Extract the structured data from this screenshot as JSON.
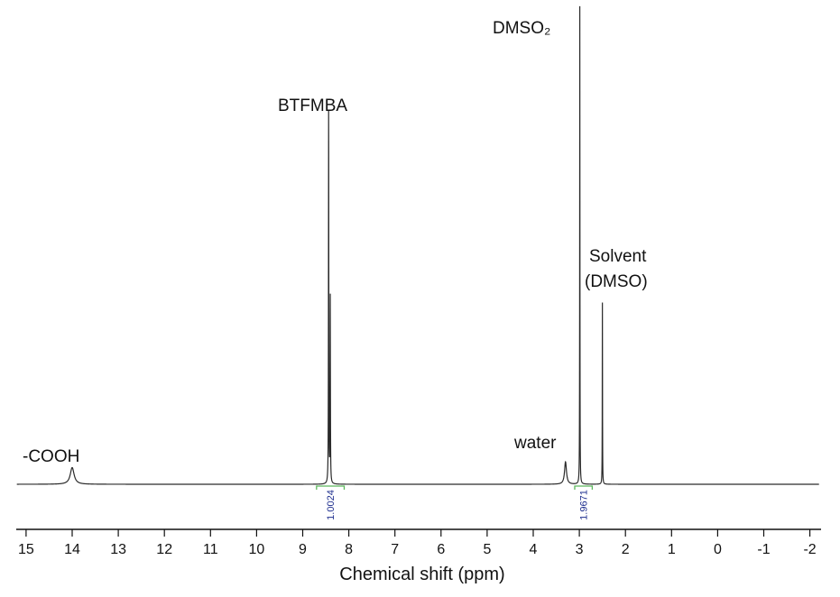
{
  "chart_data": {
    "type": "line",
    "title": "",
    "xlabel": "Chemical shift (ppm)",
    "ylabel": "",
    "xlim": [
      15.2,
      -2.2
    ],
    "x_reversed": true,
    "grid": false,
    "legend": "none",
    "x_ticks": [
      "15",
      "14",
      "13",
      "12",
      "11",
      "10",
      "9",
      "8",
      "7",
      "6",
      "5",
      "4",
      "3",
      "2",
      "1",
      "0",
      "-1",
      "-2"
    ],
    "peaks": [
      {
        "label": "-COOH",
        "shift": 14.0,
        "intensity": 0.035,
        "width": 0.1
      },
      {
        "label": "BTFMBA",
        "shift": 8.42,
        "intensity": 0.79,
        "width": 0.008,
        "doublet_spacing": 0.035
      },
      {
        "label": "water",
        "shift": 3.3,
        "intensity": 0.047,
        "width": 0.05
      },
      {
        "label": "DMSO₂",
        "shift": 2.99,
        "intensity": 1.0,
        "width": 0.006
      },
      {
        "label_line1": "Solvent",
        "label_line2": "(DMSO)",
        "shift": 2.5,
        "intensity": 0.38,
        "width": 0.006
      }
    ],
    "integrals": [
      {
        "value": "1.0024",
        "from": 8.7,
        "to": 8.1
      },
      {
        "value": "1.9671",
        "from": 3.1,
        "to": 2.72
      }
    ],
    "colors": {
      "spectrum": "#2a2a2a",
      "integral_bracket": "#5cb85c",
      "integral_text": "#1f2f8f",
      "axis": "#111111"
    }
  }
}
